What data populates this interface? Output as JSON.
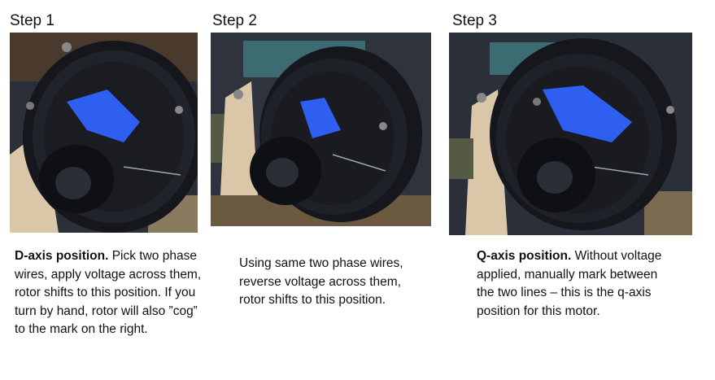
{
  "steps": [
    {
      "title": "Step 1",
      "caption_bold": "D-axis position.",
      "caption_rest": " Pick two phase wires, apply voltage across them, rotor shifts to this position. If you turn by hand, rotor will also ”cog” to the mark on the right."
    },
    {
      "title": "Step 2",
      "caption_bold": "",
      "caption_rest": "Using same two phase wires, reverse voltage across them, rotor shifts to this position."
    },
    {
      "title": "Step 3",
      "caption_bold": "Q-axis position.",
      "caption_rest": " Without voltage applied, manually mark between the two lines – this is the q-axis position for this motor."
    }
  ],
  "colors": {
    "motor_body": "#15171c",
    "tape": "#2f5ff0",
    "wood_mount": "#d9c7a8",
    "background_bench": "#3a3f49"
  }
}
